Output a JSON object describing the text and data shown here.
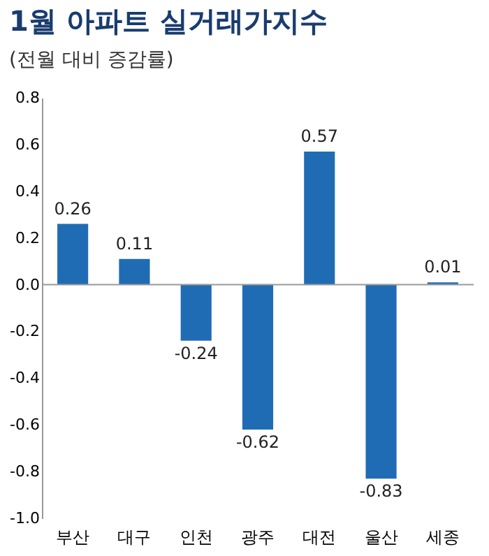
{
  "chart_data": {
    "type": "bar",
    "title": "1월 아파트 실거래가지수",
    "subtitle": "(전월 대비 증감률)",
    "categories": [
      "부산",
      "대구",
      "인천",
      "광주",
      "대전",
      "울산",
      "세종"
    ],
    "values": [
      0.26,
      0.11,
      -0.24,
      -0.62,
      0.57,
      -0.83,
      0.01
    ],
    "color": "#1f6cb4",
    "ylim": [
      -1.0,
      0.8
    ],
    "yticks": [
      0.8,
      0.6,
      0.4,
      0.2,
      {
        "value": 0,
        "label": "0.0"
      },
      -0.2,
      -0.4,
      -0.6,
      -0.8,
      {
        "value": -1.0,
        "label": "-1.0"
      }
    ],
    "ref_lines": [
      {
        "axis": "y",
        "value": 0,
        "color": "#999999"
      }
    ],
    "data_labels": true,
    "grid": false
  }
}
